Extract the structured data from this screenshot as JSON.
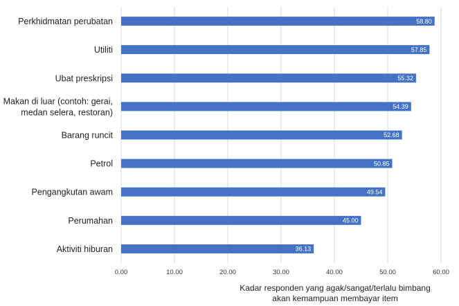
{
  "chart_data": {
    "type": "bar",
    "orientation": "horizontal",
    "categories": [
      "Perkhidmatan perubatan",
      "Utiliti",
      "Ubat preskripsi",
      "Makan di luar (contoh: gerai,\nmedan selera, restoran)",
      "Barang runcit",
      "Petrol",
      "Pengangkutan awam",
      "Perumahan",
      "Aktiviti hiburan"
    ],
    "values": [
      58.8,
      57.85,
      55.32,
      54.39,
      52.68,
      50.85,
      49.54,
      45.0,
      36.13
    ],
    "value_labels": [
      "58.80",
      "57.85",
      "55.32",
      "54.39",
      "52.68",
      "50.85",
      "49.54",
      "45.00",
      "36.13"
    ],
    "xlim": [
      0,
      60
    ],
    "xticks": [
      "0.00",
      "10.00",
      "20.00",
      "30.00",
      "40.00",
      "50.00",
      "60.00"
    ],
    "xlabel": "Kadar responden yang agak/sangat/terlalu bimbang\nakan kemampuan membayar item",
    "bar_color": "#4472c4",
    "grid": true
  }
}
